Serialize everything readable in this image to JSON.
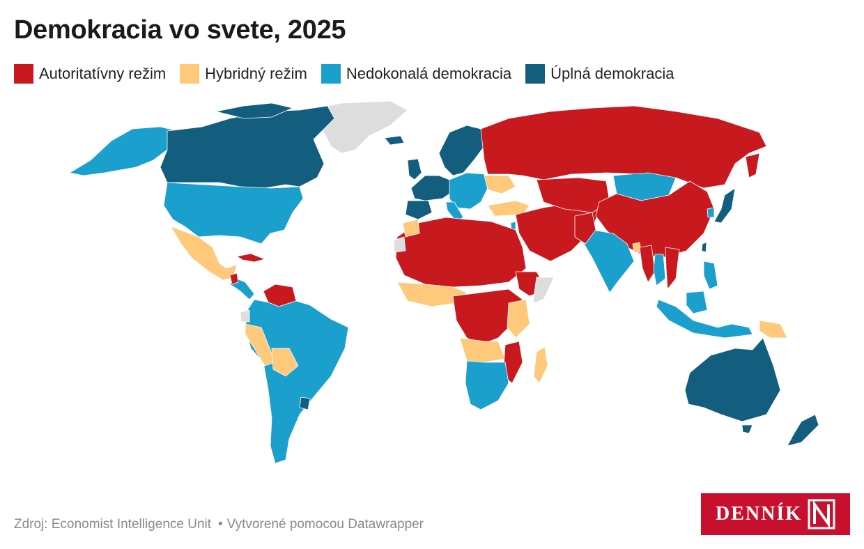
{
  "title": "Demokracia vo svete, 2025",
  "legend": [
    {
      "label": "Autoritatívny režim",
      "color": "#c8191e"
    },
    {
      "label": "Hybridný režim",
      "color": "#fec97a"
    },
    {
      "label": "Nedokonalá demokracia",
      "color": "#1b9fcd"
    },
    {
      "label": "Úplná demokracia",
      "color": "#135e7e"
    }
  ],
  "no_data_color": "#dddddd",
  "footer": {
    "source": "Zdroj: Economist Intelligence Unit",
    "credit": "Vytvorené pomocou Datawrapper"
  },
  "logo": {
    "text": "DENNÍK N"
  }
}
